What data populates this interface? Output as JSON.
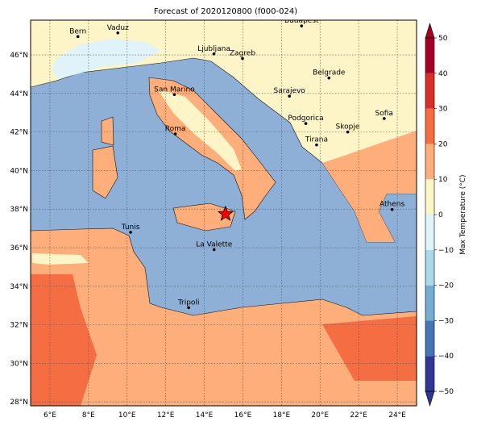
{
  "title": "Forecast of 2020120800 (f000-024)",
  "extent": {
    "lon": [
      5,
      25
    ],
    "lat": [
      27.8,
      47.8
    ]
  },
  "lon_ticks": [
    {
      "value": 6,
      "label": "6°E"
    },
    {
      "value": 8,
      "label": "8°E"
    },
    {
      "value": 10,
      "label": "10°E"
    },
    {
      "value": 12,
      "label": "12°E"
    },
    {
      "value": 14,
      "label": "14°E"
    },
    {
      "value": 16,
      "label": "16°E"
    },
    {
      "value": 18,
      "label": "18°E"
    },
    {
      "value": 20,
      "label": "20°E"
    },
    {
      "value": 22,
      "label": "22°E"
    },
    {
      "value": 24,
      "label": "24°E"
    }
  ],
  "lat_ticks": [
    {
      "value": 28,
      "label": "28°N"
    },
    {
      "value": 30,
      "label": "30°N"
    },
    {
      "value": 32,
      "label": "32°N"
    },
    {
      "value": 34,
      "label": "34°N"
    },
    {
      "value": 36,
      "label": "36°N"
    },
    {
      "value": 38,
      "label": "38°N"
    },
    {
      "value": 40,
      "label": "40°N"
    },
    {
      "value": 42,
      "label": "42°N"
    },
    {
      "value": 44,
      "label": "44°N"
    },
    {
      "value": 46,
      "label": "46°N"
    }
  ],
  "cities": [
    {
      "name": "Bern",
      "lon": 7.45,
      "lat": 46.95
    },
    {
      "name": "Vaduz",
      "lon": 9.52,
      "lat": 47.14
    },
    {
      "name": "Budapest",
      "lon": 19.04,
      "lat": 47.5
    },
    {
      "name": "Ljubljana",
      "lon": 14.5,
      "lat": 46.05
    },
    {
      "name": "Zagreb",
      "lon": 15.98,
      "lat": 45.81
    },
    {
      "name": "Belgrade",
      "lon": 20.46,
      "lat": 44.8
    },
    {
      "name": "San Marino",
      "lon": 12.45,
      "lat": 43.94
    },
    {
      "name": "Sarajevo",
      "lon": 18.41,
      "lat": 43.86
    },
    {
      "name": "Sofia",
      "lon": 23.32,
      "lat": 42.7
    },
    {
      "name": "Roma",
      "lon": 12.5,
      "lat": 41.9
    },
    {
      "name": "Podgorica",
      "lon": 19.26,
      "lat": 42.44
    },
    {
      "name": "Skopje",
      "lon": 21.43,
      "lat": 42.0
    },
    {
      "name": "Tirana",
      "lon": 19.82,
      "lat": 41.33
    },
    {
      "name": "Athens",
      "lon": 23.73,
      "lat": 37.98
    },
    {
      "name": "Tunis",
      "lon": 10.18,
      "lat": 36.8
    },
    {
      "name": "La Valette",
      "lon": 14.51,
      "lat": 35.9
    },
    {
      "name": "Tripoli",
      "lon": 13.19,
      "lat": 32.89
    }
  ],
  "marker": {
    "lon": 15.1,
    "lat": 37.75,
    "color": "#ff0000"
  },
  "colorbar": {
    "label": "Max Temperature (°C)",
    "levels": [
      -50,
      -40,
      -30,
      -20,
      -10,
      0,
      10,
      20,
      30,
      40,
      50
    ],
    "colors": [
      "#313695",
      "#4575b4",
      "#74add1",
      "#abd9e9",
      "#e0f3f8",
      "#fdf5c8",
      "#fdae7a",
      "#f46d43",
      "#d73027",
      "#a50026"
    ],
    "ticks": [
      {
        "value": -50,
        "label": "−50"
      },
      {
        "value": -40,
        "label": "−40"
      },
      {
        "value": -30,
        "label": "−30"
      },
      {
        "value": -20,
        "label": "−20"
      },
      {
        "value": -10,
        "label": "−10"
      },
      0,
      10,
      20,
      30,
      40,
      50
    ]
  }
}
